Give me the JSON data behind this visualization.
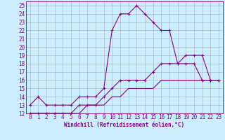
{
  "xlabel": "Windchill (Refroidissement éolien,°C)",
  "xlim": [
    -0.5,
    23.5
  ],
  "ylim": [
    12,
    25.5
  ],
  "xticks": [
    0,
    1,
    2,
    3,
    4,
    5,
    6,
    7,
    8,
    9,
    10,
    11,
    12,
    13,
    14,
    15,
    16,
    17,
    18,
    19,
    20,
    21,
    22,
    23
  ],
  "yticks": [
    12,
    13,
    14,
    15,
    16,
    17,
    18,
    19,
    20,
    21,
    22,
    23,
    24,
    25
  ],
  "bg_color": "#cceeff",
  "line_color": "#880088",
  "grid_color": "#aabbcc",
  "line1_x": [
    0,
    1,
    2,
    3,
    4,
    5,
    6,
    7,
    8,
    9,
    10,
    11,
    12,
    13,
    14,
    15,
    16,
    17,
    18,
    19,
    20,
    21,
    22,
    23
  ],
  "line1_y": [
    13,
    14,
    13,
    13,
    13,
    13,
    14,
    14,
    14,
    15,
    22,
    24,
    24,
    25,
    24,
    23,
    22,
    22,
    18,
    19,
    19,
    19,
    16,
    16
  ],
  "line2_x": [
    0,
    1,
    2,
    3,
    4,
    5,
    6,
    7,
    8,
    9,
    10,
    11,
    12,
    13,
    14,
    15,
    16,
    17,
    18,
    19,
    20,
    21,
    22,
    23
  ],
  "line2_y": [
    12,
    12,
    12,
    12,
    12,
    12,
    13,
    13,
    13,
    14,
    15,
    16,
    16,
    16,
    16,
    17,
    18,
    18,
    18,
    18,
    18,
    16,
    16,
    16
  ],
  "line3_x": [
    0,
    1,
    2,
    3,
    4,
    5,
    6,
    7,
    8,
    9,
    10,
    11,
    12,
    13,
    14,
    15,
    16,
    17,
    18,
    19,
    20,
    21,
    22,
    23
  ],
  "line3_y": [
    12,
    12,
    12,
    12,
    12,
    12,
    12,
    13,
    13,
    13,
    14,
    14,
    15,
    15,
    15,
    15,
    16,
    16,
    16,
    16,
    16,
    16,
    16,
    16
  ],
  "tick_fontsize": 5.5,
  "xlabel_fontsize": 5.5
}
